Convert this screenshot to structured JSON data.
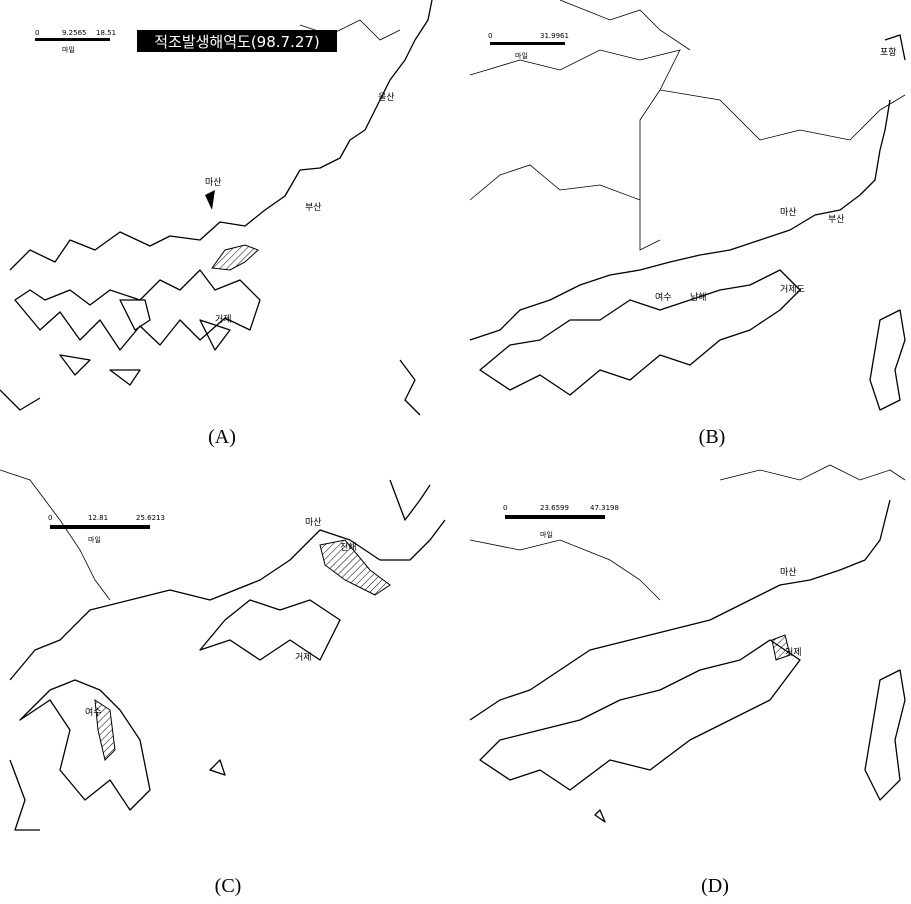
{
  "panels": [
    {
      "caption": "(A)",
      "title": "적조발생해역도(98.7.27)",
      "scale": {
        "ticks": [
          "0",
          "9.2565",
          "18.51"
        ],
        "unit": "마일"
      },
      "places": [
        "울산",
        "마산",
        "부산",
        "거제"
      ]
    },
    {
      "caption": "(B)",
      "scale": {
        "ticks": [
          "0",
          "31.9961"
        ],
        "unit": "마일"
      },
      "places": [
        "포항",
        "마산",
        "부산",
        "남해",
        "여수",
        "거제도"
      ]
    },
    {
      "caption": "(C)",
      "scale": {
        "ticks": [
          "0",
          "12.81",
          "25.6213"
        ],
        "unit": "마일"
      },
      "places": [
        "마산",
        "진해",
        "거제",
        "여수"
      ]
    },
    {
      "caption": "(D)",
      "scale": {
        "ticks": [
          "0",
          "23.6599",
          "47.3198"
        ],
        "unit": "마일"
      },
      "places": [
        "마산",
        "거제"
      ]
    }
  ]
}
